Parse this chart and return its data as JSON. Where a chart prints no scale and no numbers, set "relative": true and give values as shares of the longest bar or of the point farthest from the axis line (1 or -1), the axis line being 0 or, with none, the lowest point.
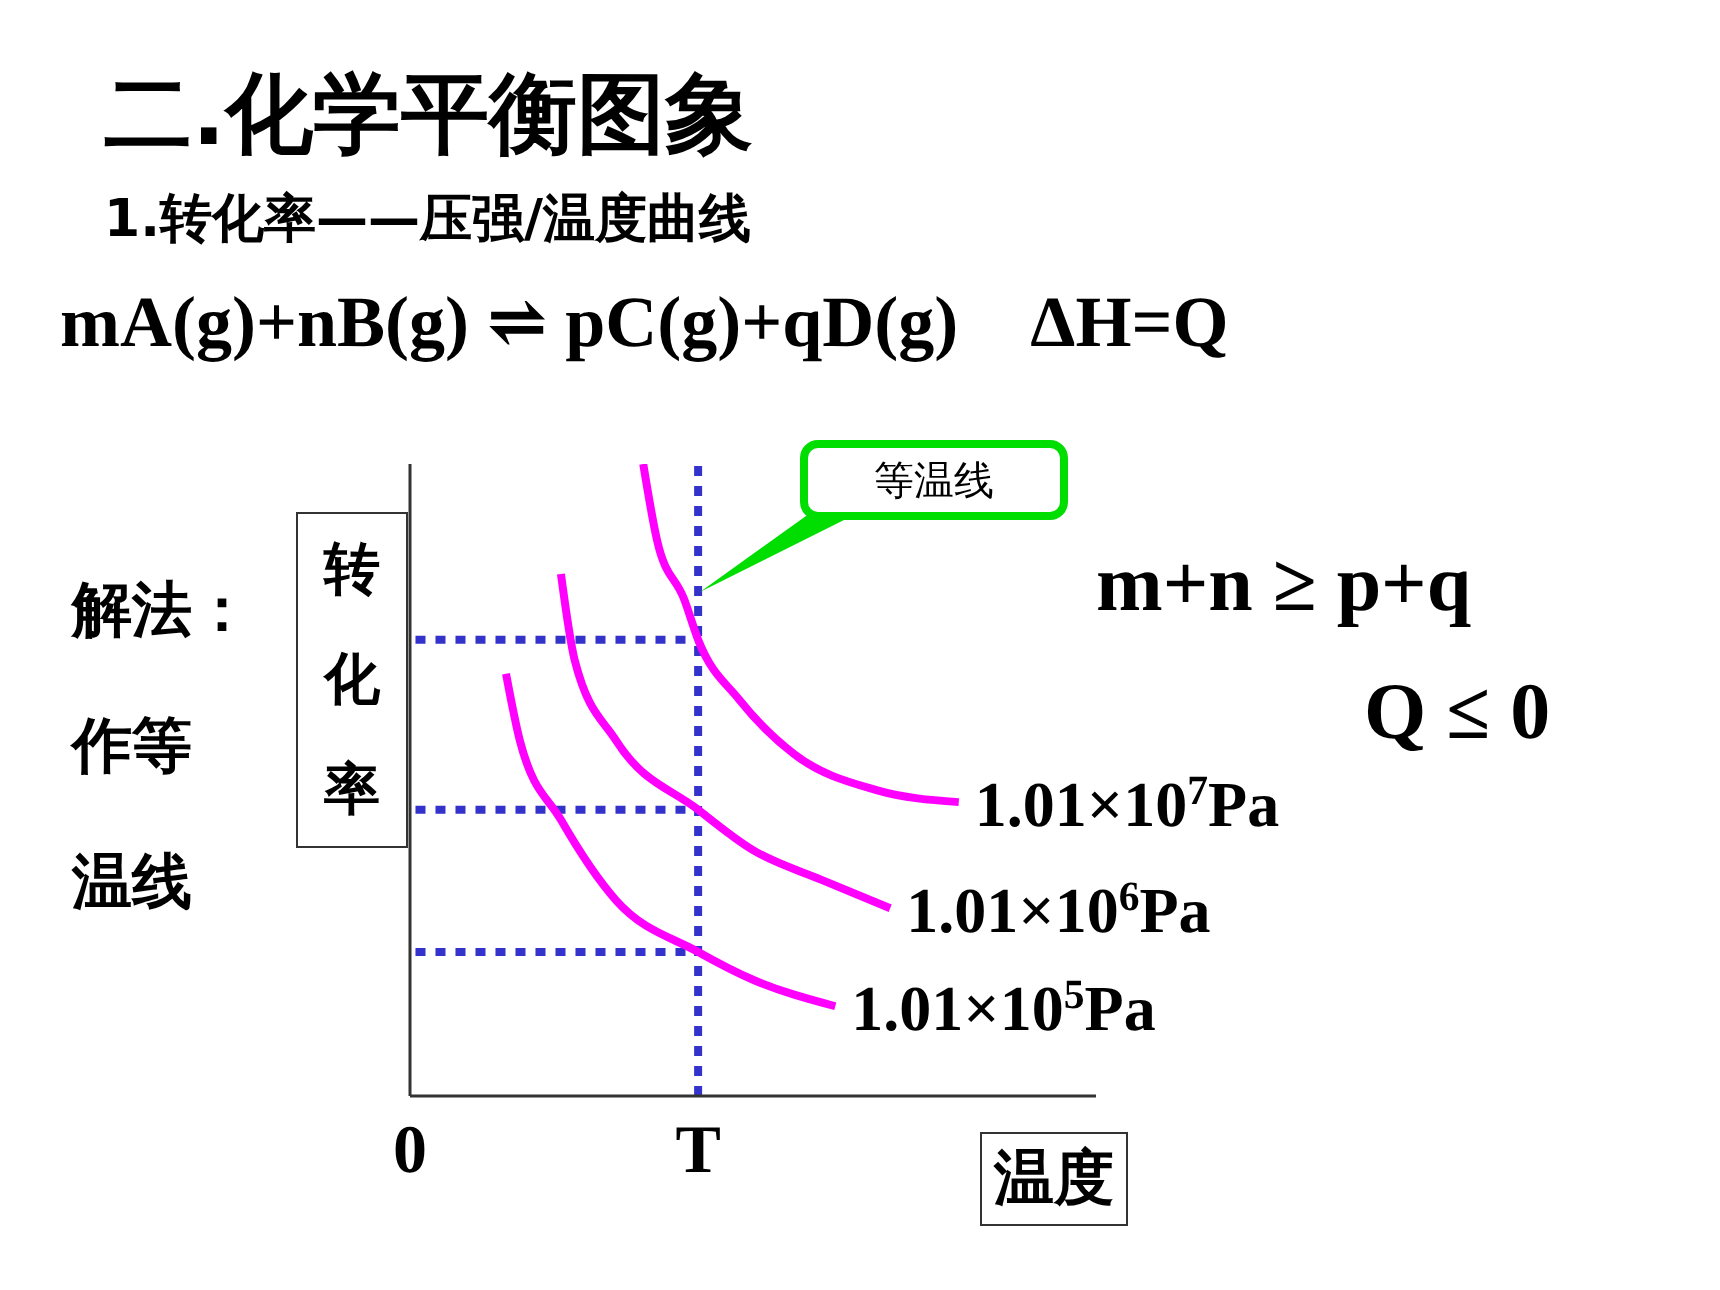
{
  "chart_data": {
    "type": "line",
    "title": "二.化学平衡图象",
    "subtitle": "1.转化率——压强/温度曲线",
    "xlabel": "温度",
    "ylabel": "转化率",
    "relative": true,
    "categories": [
      "0",
      null,
      null,
      null,
      null,
      null,
      null,
      null,
      null,
      null,
      null,
      null,
      null,
      null,
      null,
      null,
      null,
      null,
      null,
      null,
      null,
      "T",
      null,
      null,
      null,
      null,
      null,
      null,
      null,
      null,
      null,
      null,
      null,
      null,
      null,
      null,
      null,
      null,
      null,
      null,
      null,
      null,
      null,
      null,
      null,
      null,
      null,
      null,
      null,
      null,
      null
    ],
    "series": [
      {
        "name": "1.01×10$^{7}$Pa",
        "color": "#ff00ff",
        "values": [
          null,
          null,
          null,
          null,
          null,
          null,
          null,
          null,
          null,
          null,
          null,
          null,
          null,
          null,
          null,
          null,
          null,
          1,
          0.88,
          null,
          0.785,
          0.722,
          null,
          null,
          0.627,
          null,
          null,
          null,
          0.541,
          null,
          null,
          null,
          null,
          null,
          0.484,
          null,
          null,
          null,
          null,
          null,
          0.465,
          null,
          null,
          null,
          null,
          null,
          null,
          null,
          null,
          null,
          null
        ]
      },
      {
        "name": "1.01×10$^{6}$Pa",
        "color": "#ff00ff",
        "values": [
          null,
          null,
          null,
          null,
          null,
          null,
          null,
          null,
          null,
          null,
          null,
          0.826,
          0.69,
          null,
          null,
          0.563,
          null,
          null,
          null,
          null,
          null,
          0.453,
          null,
          null,
          null,
          0.389,
          null,
          null,
          null,
          null,
          0.342,
          null,
          null,
          null,
          null,
          0.297,
          null,
          null,
          null,
          null,
          null,
          null,
          null,
          null,
          null,
          null,
          null,
          null,
          null,
          null,
          null
        ]
      },
      {
        "name": "1.01×10$^{5}$Pa",
        "color": "#ff00ff",
        "values": [
          null,
          null,
          null,
          null,
          null,
          null,
          null,
          0.668,
          0.563,
          null,
          null,
          0.437,
          null,
          null,
          null,
          0.31,
          null,
          null,
          null,
          null,
          null,
          0.228,
          null,
          null,
          null,
          0.184,
          null,
          null,
          null,
          null,
          null,
          0.142,
          null,
          null,
          null,
          null,
          null,
          null,
          null,
          null,
          null,
          null,
          null,
          null,
          null,
          null,
          null,
          null,
          null,
          null,
          null
        ]
      }
    ],
    "ref_lines": [
      {
        "axis": "x",
        "value": "T",
        "color": "#3333cc",
        "line_style": "dotted"
      },
      {
        "axis": "y",
        "value": 0.722,
        "color": "#3333cc",
        "line_style": "dotted"
      },
      {
        "axis": "y",
        "value": 0.453,
        "color": "#3333cc",
        "line_style": "dotted"
      },
      {
        "axis": "y",
        "value": 0.228,
        "color": "#3333cc",
        "line_style": "dotted"
      }
    ],
    "annotations": [
      "mA(g)+nB(g) ⇌ pC(g)+qD(g)    ΔH=Q",
      "解法：作等温线",
      "m+n ≥ p+q",
      "Q ≤ 0",
      "等温线"
    ],
    "grid": false,
    "legend": false,
    "marker": "none",
    "line_style": "solid"
  }
}
